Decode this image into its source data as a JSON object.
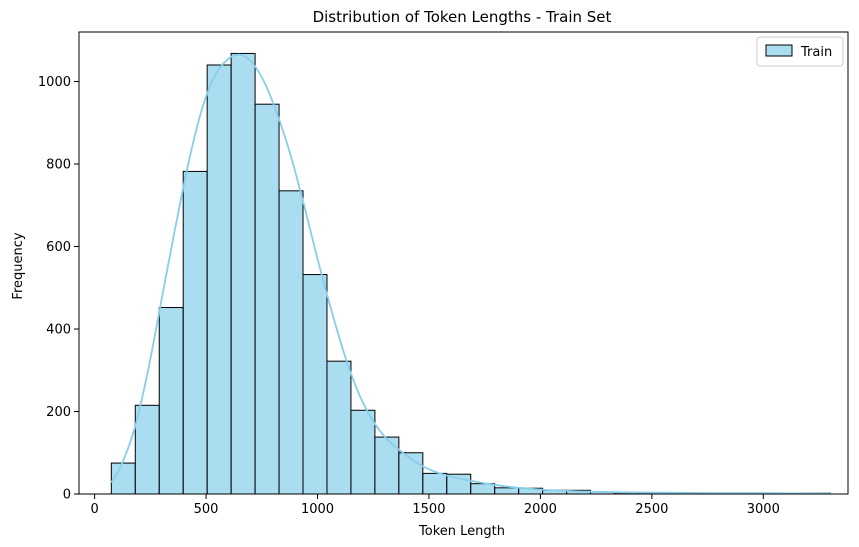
{
  "chart_data": {
    "type": "bar",
    "title": "Distribution of Token Lengths - Train Set",
    "xlabel": "Token Length",
    "ylabel": "Frequency",
    "xlim": [
      -70,
      3380
    ],
    "ylim": [
      0,
      1120
    ],
    "xticks": [
      0,
      500,
      1000,
      1500,
      2000,
      2500,
      3000
    ],
    "yticks": [
      0,
      200,
      400,
      600,
      800,
      1000
    ],
    "grid": false,
    "legend": {
      "placement": "top-right",
      "entries": [
        "Train"
      ]
    },
    "colors": {
      "bar_fill": "#87ceeb",
      "bar_fill_opacity": 0.7,
      "bar_edge": "#000000",
      "kde_line": "#87ceeb"
    },
    "series": [
      {
        "name": "Train",
        "bin_edges": [
          75,
          182.5,
          290,
          397.5,
          505,
          612.5,
          720,
          827.5,
          935,
          1042.5,
          1150,
          1257.5,
          1365,
          1472.5,
          1580,
          1687.5,
          1795,
          1902.5,
          2010,
          2117.5,
          2225,
          2332.5,
          2440,
          2547.5,
          2655,
          2762.5,
          2870,
          2977.5,
          3085,
          3192.5,
          3300
        ],
        "values": [
          75,
          215,
          452,
          782,
          1040,
          1068,
          945,
          735,
          532,
          322,
          203,
          138,
          100,
          50,
          48,
          25,
          15,
          14,
          9,
          9,
          5,
          3,
          3,
          3,
          2,
          2,
          2,
          2,
          2,
          2
        ]
      }
    ],
    "kde": {
      "x": [
        75,
        120,
        180,
        240,
        300,
        360,
        420,
        480,
        540,
        600,
        650,
        700,
        760,
        820,
        880,
        940,
        1000,
        1060,
        1120,
        1180,
        1240,
        1300,
        1360,
        1420,
        1480,
        1560,
        1650,
        1750,
        1850,
        1950,
        2050,
        2200,
        2400,
        2600,
        2800,
        3000,
        3300
      ],
      "y": [
        28,
        70,
        160,
        300,
        470,
        640,
        800,
        930,
        1015,
        1055,
        1065,
        1050,
        1000,
        920,
        820,
        700,
        570,
        450,
        340,
        250,
        185,
        140,
        110,
        85,
        65,
        48,
        36,
        26,
        18,
        13,
        9,
        6,
        4,
        3,
        2,
        2,
        1
      ]
    }
  }
}
